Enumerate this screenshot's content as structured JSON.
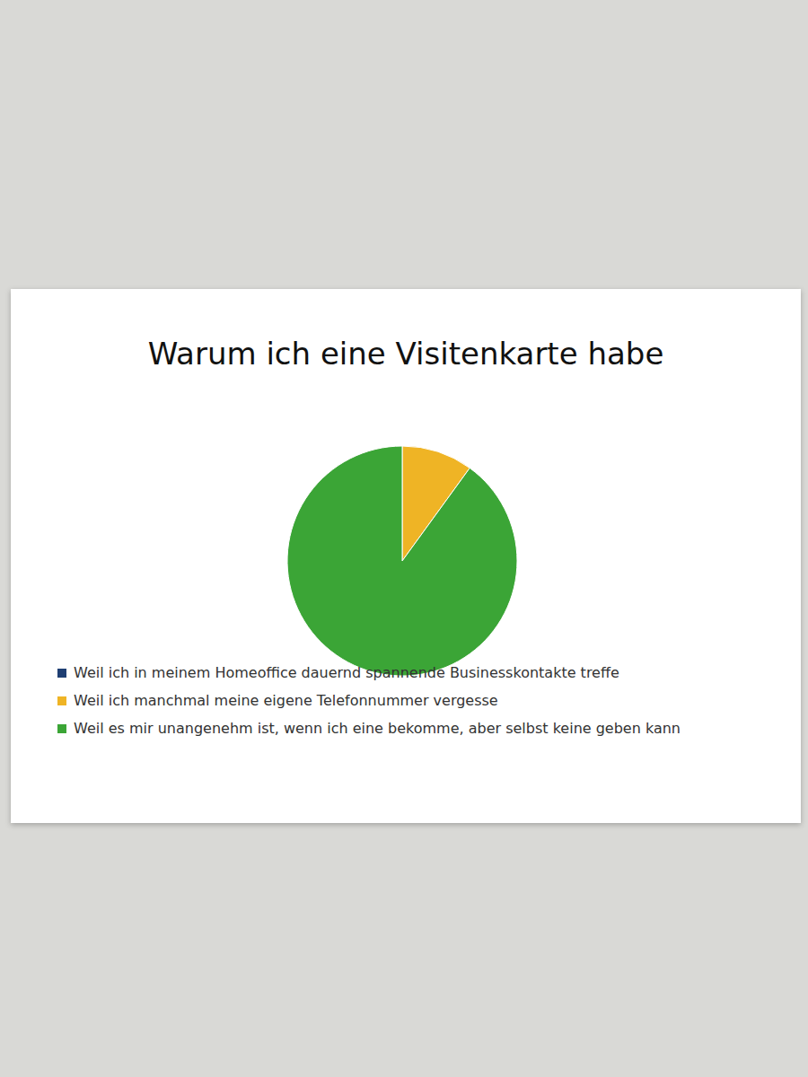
{
  "chart_data": {
    "type": "pie",
    "title": "Warum ich eine Visitenkarte habe",
    "categories": [
      "Weil ich in meinem Homeoffice dauernd spannende Businesskontakte treffe",
      "Weil ich manchmal meine eigene Telefonnummer vergesse",
      "Weil es mir unangenehm ist, wenn ich eine bekomme, aber selbst keine geben kann"
    ],
    "values": [
      0,
      10,
      90
    ],
    "colors": [
      "#1f3f73",
      "#efb425",
      "#3ba536"
    ],
    "legend": "bottom"
  }
}
